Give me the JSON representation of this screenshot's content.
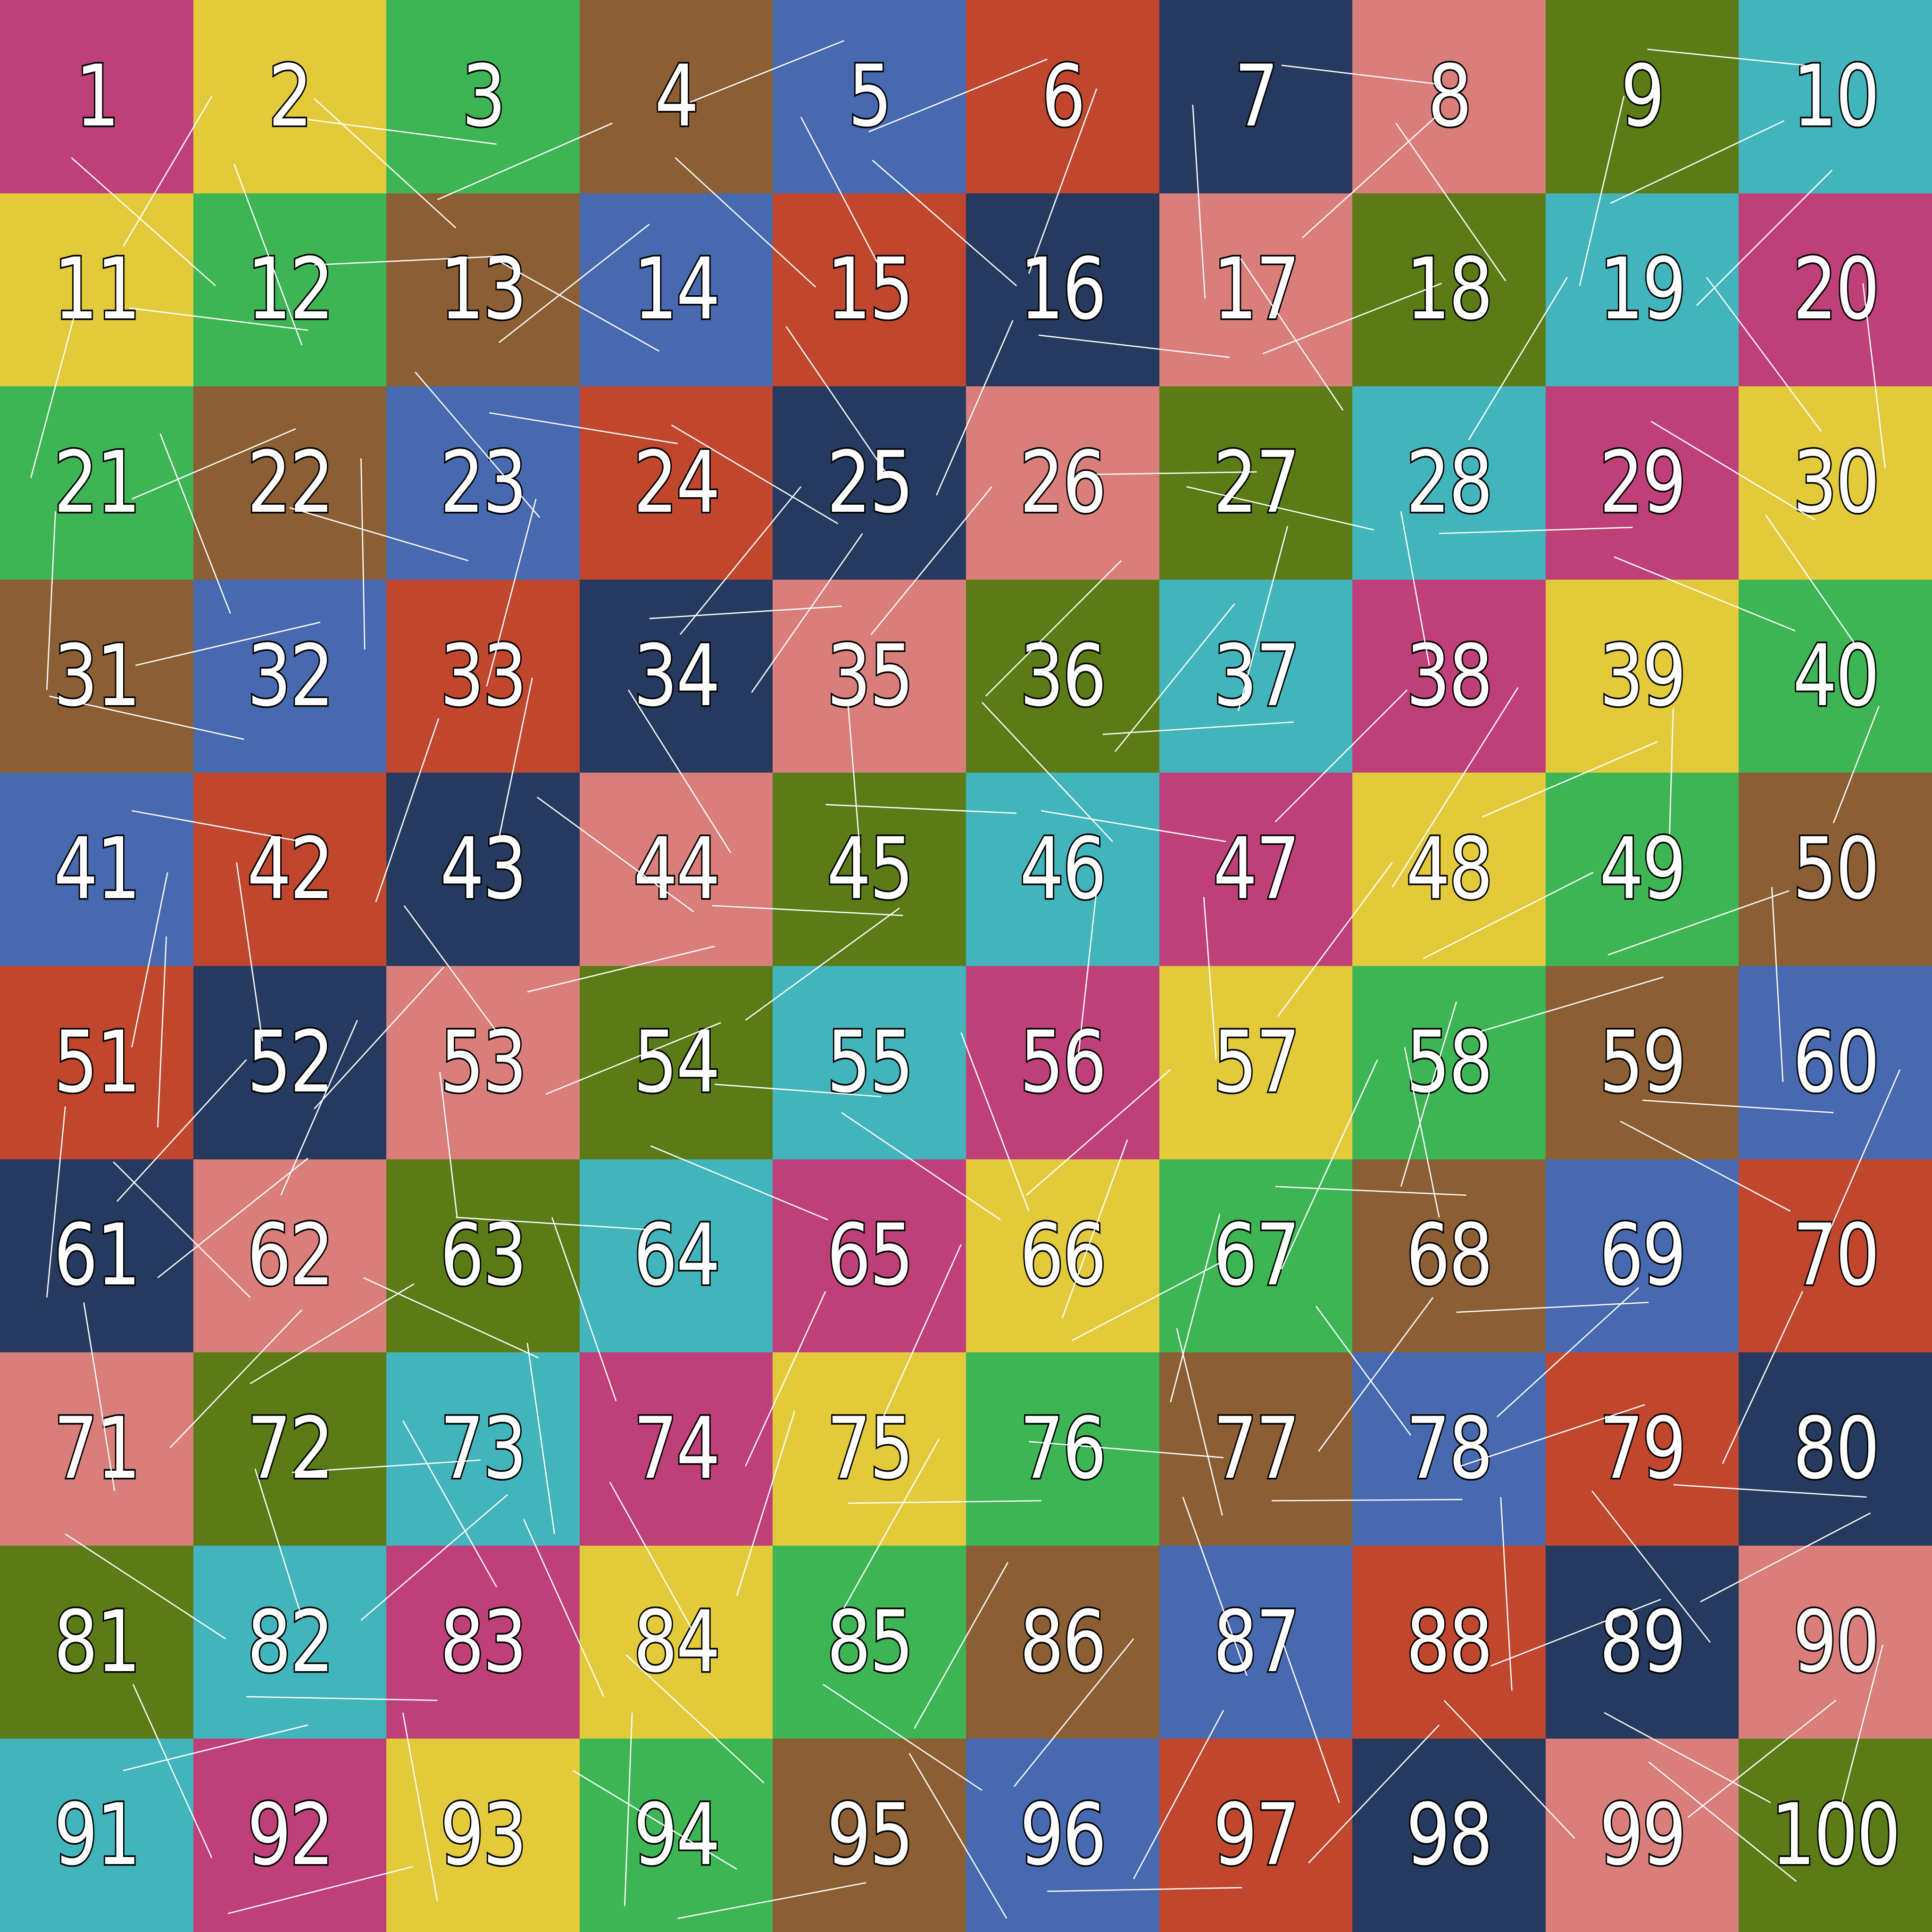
{
  "palette": {
    "magenta": "#BF4079",
    "yellow": "#E2CA3A",
    "green": "#3DB554",
    "brown": "#8B5E34",
    "blue": "#4769B0",
    "red": "#C0472E",
    "navy": "#253A5E",
    "salmon": "#D97E7A",
    "olive": "#5B7B17",
    "teal": "#42B4BC"
  },
  "color_order": [
    "magenta",
    "yellow",
    "green",
    "brown",
    "blue",
    "red",
    "navy",
    "salmon",
    "olive",
    "teal"
  ],
  "cells": [
    "1",
    "2",
    "3",
    "4",
    "5",
    "6",
    "7",
    "8",
    "9",
    "10",
    "11",
    "12",
    "13",
    "14",
    "15",
    "16",
    "17",
    "18",
    "19",
    "20",
    "21",
    "22",
    "23",
    "24",
    "25",
    "26",
    "27",
    "28",
    "29",
    "30",
    "31",
    "32",
    "33",
    "34",
    "35",
    "36",
    "37",
    "38",
    "39",
    "40",
    "41",
    "42",
    "43",
    "44",
    "45",
    "46",
    "47",
    "48",
    "49",
    "50",
    "51",
    "52",
    "53",
    "54",
    "55",
    "56",
    "57",
    "58",
    "59",
    "60",
    "61",
    "62",
    "63",
    "64",
    "65",
    "66",
    "67",
    "68",
    "69",
    "70",
    "71",
    "72",
    "73",
    "74",
    "75",
    "76",
    "77",
    "78",
    "79",
    "80",
    "81",
    "82",
    "83",
    "84",
    "85",
    "86",
    "87",
    "88",
    "89",
    "90",
    "91",
    "92",
    "93",
    "94",
    "95",
    "96",
    "97",
    "98",
    "99",
    "100"
  ],
  "label_color": "#FFFFFF",
  "outline_color": "#000000",
  "line_color": "#FFFFFF"
}
